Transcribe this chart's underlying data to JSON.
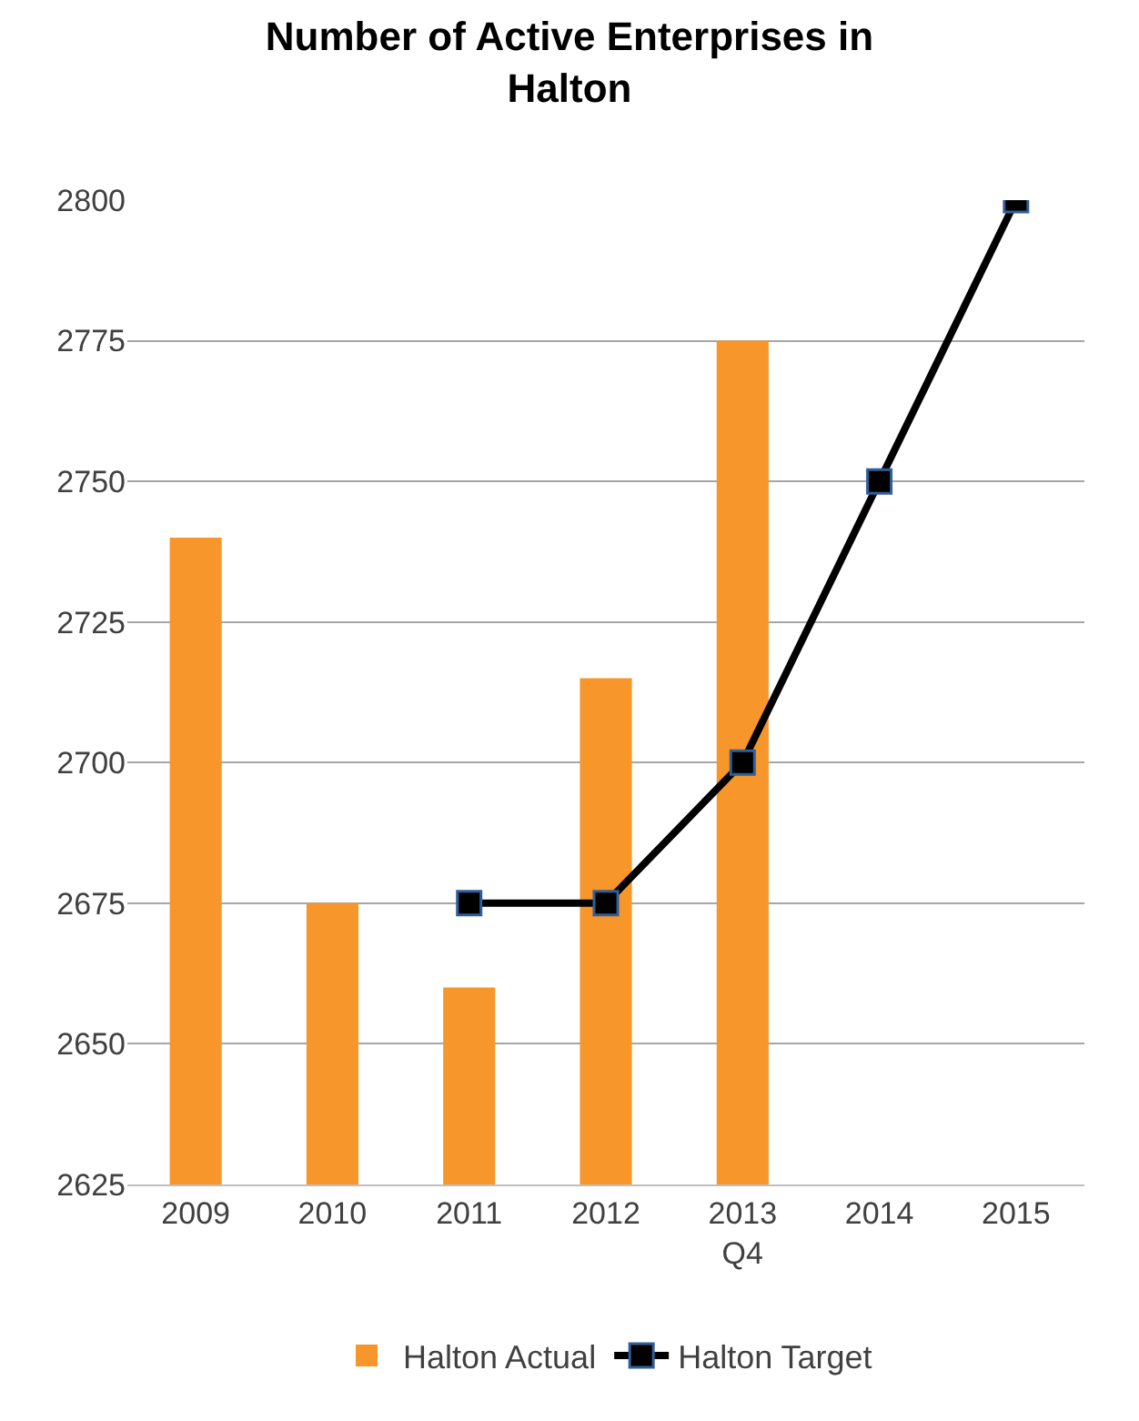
{
  "chart_data": {
    "type": "bar",
    "title": "Number of Active Enterprises in\nHalton",
    "categories": [
      "2009",
      "2010",
      "2011",
      "2012",
      "2013\nQ4",
      "2014",
      "2015"
    ],
    "series": [
      {
        "name": "Halton Actual",
        "color": "#f7962a",
        "values": [
          2740,
          2675,
          2660,
          2715,
          2775,
          null,
          null
        ]
      },
      {
        "name": "Halton Target",
        "type": "line",
        "color": "#000000",
        "marker": "square",
        "values": [
          null,
          null,
          2675,
          2675,
          2700,
          2750,
          2800
        ]
      }
    ],
    "ylim": [
      2625,
      2800
    ],
    "yticks": [
      2625,
      2650,
      2675,
      2700,
      2725,
      2750,
      2775,
      2800
    ],
    "grid": "y",
    "legend": "bottom"
  }
}
